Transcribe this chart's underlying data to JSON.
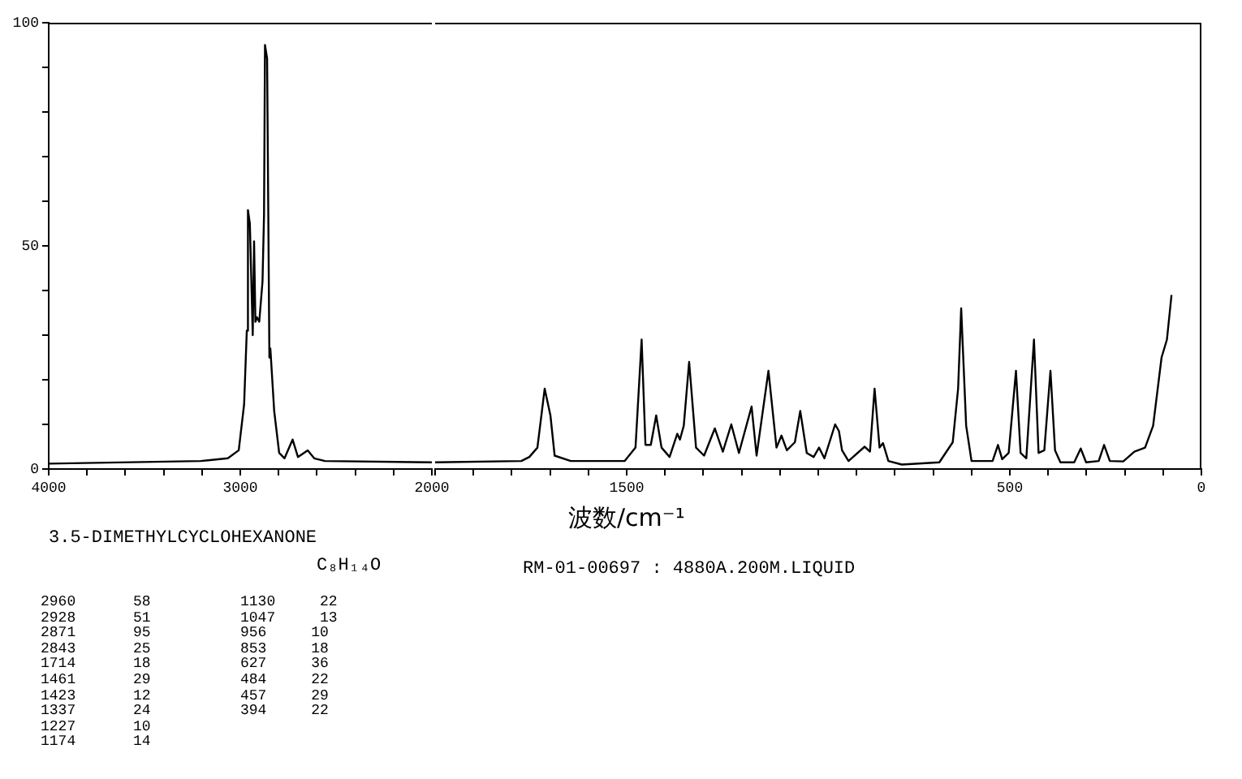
{
  "chart_data": [
    {
      "type": "line",
      "title": "3.5-DIMETHYLCYCLOHEXANONE",
      "subtitle": "C₈H₁₄O",
      "color": "#000000",
      "marker": "none",
      "line_style": "solid",
      "grid": false,
      "legend": false,
      "xlim": [
        4000,
        2000
      ],
      "ylim": [
        0,
        100
      ],
      "xticks": [
        4000,
        {
          "value": 3800,
          "label": null
        },
        {
          "value": 3600,
          "label": null
        },
        {
          "value": 3400,
          "label": null
        },
        {
          "value": 3200,
          "label": null
        },
        3000,
        {
          "value": 2800,
          "label": null
        },
        {
          "value": 2600,
          "label": null
        },
        {
          "value": 2400,
          "label": null
        },
        {
          "value": 2200,
          "label": null
        },
        2000
      ],
      "yticks": [
        0,
        {
          "value": 10,
          "label": null
        },
        {
          "value": 20,
          "label": null
        },
        {
          "value": 30,
          "label": null
        },
        {
          "value": 40,
          "label": null
        },
        50,
        {
          "value": 60,
          "label": null
        },
        {
          "value": 70,
          "label": null
        },
        {
          "value": 80,
          "label": null
        },
        {
          "value": 90,
          "label": null
        },
        100
      ],
      "x": [
        4000,
        3206,
        3065,
        3008,
        2980,
        2966,
        2960,
        2950,
        2935,
        2928,
        2921,
        2913,
        2901,
        2884,
        2876,
        2871,
        2860,
        2848,
        2843,
        2823,
        2797,
        2769,
        2727,
        2699,
        2648,
        2614,
        2558,
        2000
      ],
      "values": [
        1.2,
        1.8,
        2.4,
        4.2,
        14.5,
        31,
        58,
        55,
        30,
        51,
        33,
        34,
        33,
        42,
        57,
        95,
        92,
        25,
        27,
        13,
        3.6,
        2.4,
        6.6,
        2.7,
        4.2,
        2.4,
        1.8,
        1.5
      ],
      "annotations": [
        "2960 58",
        "2928 51",
        "2871 95",
        "2843 25",
        "1714 18",
        "1461 29",
        "1423 12",
        "1337 24",
        "1227 10",
        "1174 14",
        "1130 22",
        "1047 13",
        "956 10",
        "853 18",
        "627 36",
        "484 22",
        "457 29",
        "394 22"
      ]
    },
    {
      "type": "line",
      "xlabel": "波数/cm⁻¹",
      "color": "#000000",
      "marker": "none",
      "line_style": "solid",
      "grid": false,
      "legend": false,
      "tick_labels": "x",
      "xlim": [
        2000,
        0
      ],
      "ylim": [
        0,
        100
      ],
      "xticks": [
        {
          "value": 2000,
          "label": null
        },
        {
          "value": 1900,
          "label": null
        },
        {
          "value": 1800,
          "label": null
        },
        {
          "value": 1700,
          "label": null
        },
        {
          "value": 1600,
          "label": null
        },
        1500,
        {
          "value": 1400,
          "label": null
        },
        {
          "value": 1300,
          "label": null
        },
        {
          "value": 1200,
          "label": null
        },
        {
          "value": 1100,
          "label": null
        },
        {
          "value": 1000,
          "label": null
        },
        {
          "value": 900,
          "label": null
        },
        {
          "value": 800,
          "label": null
        },
        {
          "value": 700,
          "label": null
        },
        {
          "value": 600,
          "label": null
        },
        500,
        {
          "value": 400,
          "label": null
        },
        {
          "value": 300,
          "label": null
        },
        {
          "value": 200,
          "label": null
        },
        {
          "value": 100,
          "label": null
        },
        0
      ],
      "x": [
        2000,
        1775,
        1754,
        1733,
        1714,
        1699,
        1688,
        1646,
        1505,
        1477,
        1461,
        1451,
        1437,
        1423,
        1409,
        1388,
        1368,
        1361,
        1351,
        1337,
        1319,
        1298,
        1270,
        1249,
        1227,
        1207,
        1174,
        1161,
        1130,
        1109,
        1096,
        1082,
        1061,
        1047,
        1030,
        1012,
        998,
        984,
        956,
        946,
        938,
        921,
        879,
        865,
        853,
        840,
        831,
        817,
        782,
        684,
        649,
        635,
        627,
        614,
        600,
        545,
        531,
        520,
        503,
        484,
        472,
        457,
        437,
        425,
        410,
        394,
        382,
        368,
        332,
        315,
        301,
        268,
        254,
        239,
        204,
        175,
        147,
        126,
        104,
        90,
        78
      ],
      "values": [
        1.5,
        1.8,
        2.7,
        4.8,
        18,
        12,
        3,
        1.8,
        1.8,
        4.8,
        29,
        5.4,
        5.4,
        12,
        4.8,
        2.7,
        7.9,
        6.6,
        9.7,
        24,
        4.8,
        3,
        9.1,
        3.9,
        10,
        3.6,
        14,
        3,
        22,
        4.8,
        7.5,
        4.2,
        6,
        13,
        3.6,
        2.7,
        4.8,
        2.4,
        10,
        8.5,
        4.2,
        1.8,
        5,
        3.9,
        18,
        4.8,
        5.8,
        1.8,
        1,
        1.5,
        6,
        18,
        36,
        9.7,
        1.8,
        1.8,
        5.4,
        2.2,
        3.6,
        22,
        3.6,
        2.4,
        29,
        3.6,
        4.2,
        22,
        4.2,
        1.5,
        1.5,
        4.6,
        1.5,
        1.8,
        5.4,
        1.8,
        1.7,
        3.9,
        4.8,
        9.7,
        25,
        29,
        39
      ],
      "annotations": [
        "RM-01-00697 : 4880A.200M.LIQUID"
      ]
    }
  ]
}
